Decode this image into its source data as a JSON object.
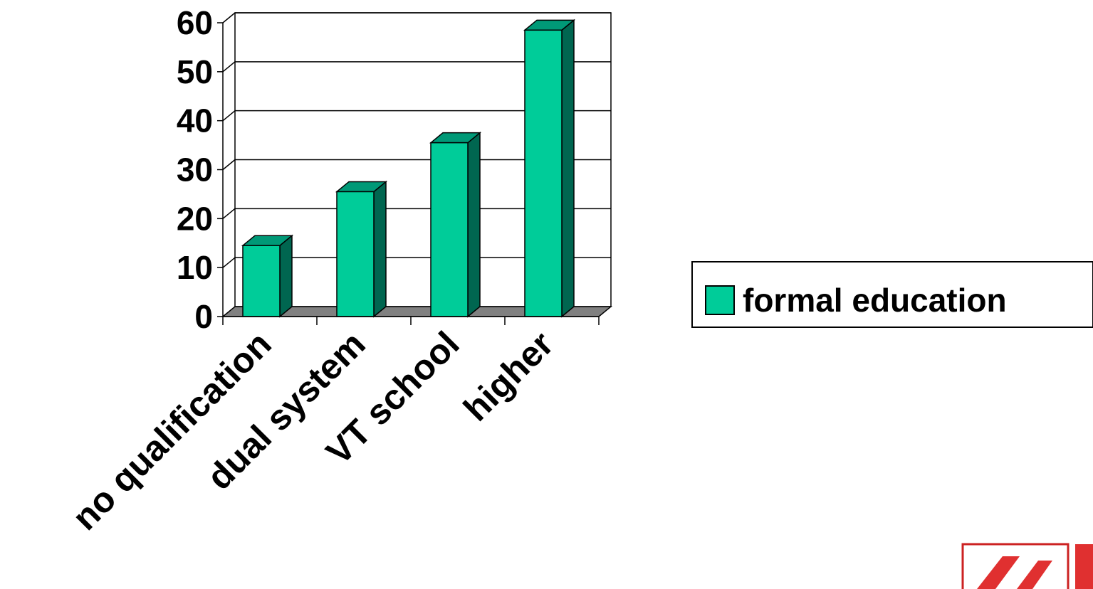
{
  "chart_data": {
    "type": "bar",
    "categories": [
      "no qualification",
      "dual system",
      "VT school",
      "higher"
    ],
    "series": [
      {
        "name": "formal education",
        "values": [
          14.5,
          25.5,
          35.5,
          58.5
        ]
      }
    ],
    "ylim": [
      0,
      60
    ],
    "yticks": [
      0,
      10,
      20,
      30,
      40,
      50,
      60
    ],
    "grid": true,
    "legend": "right",
    "colors": {
      "bar_front": "#00CC99",
      "bar_side": "#006650",
      "bar_top": "#009977",
      "floor": "#808080"
    }
  }
}
